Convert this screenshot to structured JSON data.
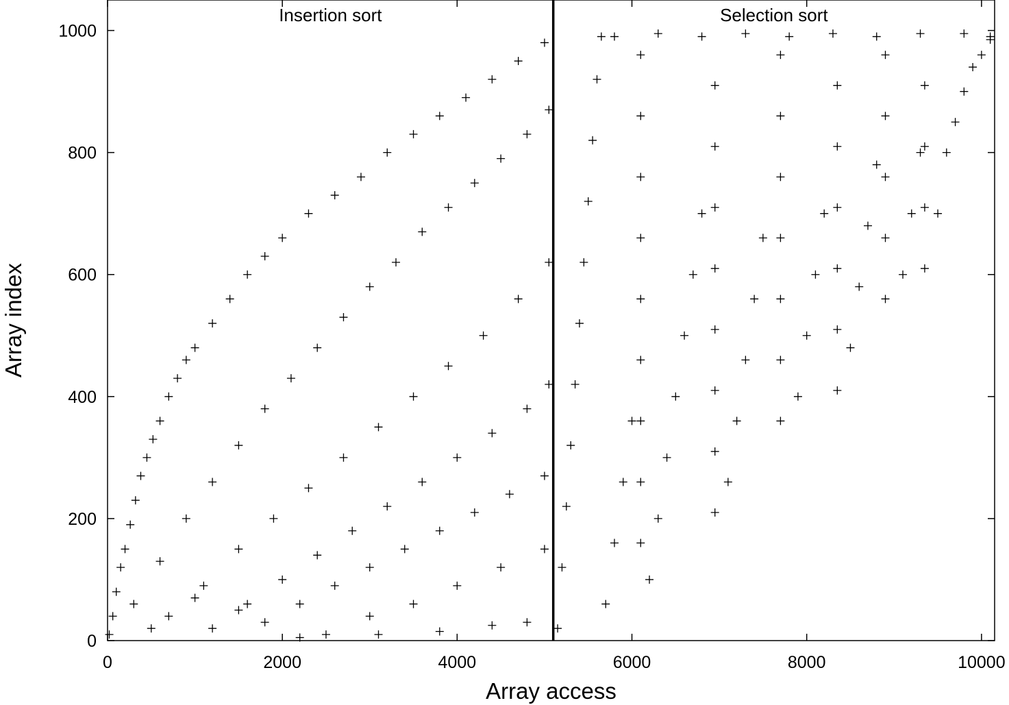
{
  "chart_data": {
    "type": "scatter",
    "title": "",
    "xlabel": "Array access",
    "ylabel": "Array index",
    "xlim": [
      0,
      10150
    ],
    "ylim": [
      0,
      1050
    ],
    "xticks": [
      0,
      2000,
      4000,
      6000,
      8000,
      10000
    ],
    "yticks": [
      0,
      200,
      400,
      600,
      800,
      1000
    ],
    "xtick_labels": [
      "0",
      "2000",
      "4000",
      "6000",
      "8000",
      "10000"
    ],
    "ytick_labels": [
      "0",
      "200",
      "400",
      "600",
      "800",
      "1000"
    ],
    "marker": "+",
    "marker_color": "#000000",
    "grid": false,
    "divider_x": 5100,
    "panels": [
      {
        "label": "Insertion sort"
      },
      {
        "label": "Selection sort"
      }
    ],
    "series": [
      {
        "points": [
          [
            20,
            10
          ],
          [
            60,
            40
          ],
          [
            100,
            80
          ],
          [
            150,
            120
          ],
          [
            200,
            150
          ],
          [
            260,
            190
          ],
          [
            320,
            230
          ],
          [
            380,
            270
          ],
          [
            450,
            300
          ],
          [
            520,
            330
          ],
          [
            600,
            360
          ],
          [
            700,
            400
          ],
          [
            800,
            430
          ],
          [
            900,
            460
          ],
          [
            1000,
            480
          ],
          [
            1200,
            520
          ],
          [
            1400,
            560
          ],
          [
            1600,
            600
          ],
          [
            1800,
            630
          ],
          [
            2000,
            660
          ],
          [
            2300,
            700
          ],
          [
            2600,
            730
          ],
          [
            2900,
            760
          ],
          [
            3200,
            800
          ],
          [
            3500,
            830
          ],
          [
            3800,
            860
          ],
          [
            4100,
            890
          ],
          [
            4400,
            920
          ],
          [
            4700,
            950
          ],
          [
            5000,
            980
          ],
          [
            300,
            60
          ],
          [
            600,
            130
          ],
          [
            900,
            200
          ],
          [
            1200,
            260
          ],
          [
            1500,
            320
          ],
          [
            1800,
            380
          ],
          [
            2100,
            430
          ],
          [
            2400,
            480
          ],
          [
            2700,
            530
          ],
          [
            3000,
            580
          ],
          [
            3300,
            620
          ],
          [
            3600,
            670
          ],
          [
            3900,
            710
          ],
          [
            4200,
            750
          ],
          [
            4500,
            790
          ],
          [
            4800,
            830
          ],
          [
            5050,
            870
          ],
          [
            700,
            40
          ],
          [
            1100,
            90
          ],
          [
            1500,
            150
          ],
          [
            1900,
            200
          ],
          [
            2300,
            250
          ],
          [
            2700,
            300
          ],
          [
            3100,
            350
          ],
          [
            3500,
            400
          ],
          [
            3900,
            450
          ],
          [
            4300,
            500
          ],
          [
            4700,
            560
          ],
          [
            5050,
            620
          ],
          [
            1200,
            20
          ],
          [
            1600,
            60
          ],
          [
            2000,
            100
          ],
          [
            2400,
            140
          ],
          [
            2800,
            180
          ],
          [
            3200,
            220
          ],
          [
            3600,
            260
          ],
          [
            4000,
            300
          ],
          [
            4400,
            340
          ],
          [
            4800,
            380
          ],
          [
            5050,
            420
          ],
          [
            1800,
            30
          ],
          [
            2200,
            60
          ],
          [
            2600,
            90
          ],
          [
            3000,
            120
          ],
          [
            3400,
            150
          ],
          [
            3800,
            180
          ],
          [
            4200,
            210
          ],
          [
            4600,
            240
          ],
          [
            5000,
            270
          ],
          [
            2500,
            10
          ],
          [
            3000,
            40
          ],
          [
            3500,
            60
          ],
          [
            4000,
            90
          ],
          [
            4500,
            120
          ],
          [
            5000,
            150
          ],
          [
            4800,
            30
          ],
          [
            4400,
            25
          ],
          [
            3800,
            15
          ],
          [
            3100,
            10
          ],
          [
            2200,
            5
          ],
          [
            1500,
            50
          ],
          [
            1000,
            70
          ],
          [
            500,
            20
          ]
        ]
      },
      {
        "points": [
          [
            5150,
            20
          ],
          [
            5200,
            120
          ],
          [
            5250,
            220
          ],
          [
            5300,
            320
          ],
          [
            5350,
            420
          ],
          [
            5400,
            520
          ],
          [
            5450,
            620
          ],
          [
            5500,
            720
          ],
          [
            5550,
            820
          ],
          [
            5600,
            920
          ],
          [
            5650,
            990
          ],
          [
            5700,
            60
          ],
          [
            5800,
            160
          ],
          [
            5900,
            260
          ],
          [
            6000,
            360
          ],
          [
            6100,
            160
          ],
          [
            6100,
            260
          ],
          [
            6100,
            360
          ],
          [
            6100,
            460
          ],
          [
            6100,
            560
          ],
          [
            6100,
            660
          ],
          [
            6100,
            760
          ],
          [
            6100,
            860
          ],
          [
            6100,
            960
          ],
          [
            6200,
            100
          ],
          [
            6300,
            200
          ],
          [
            6400,
            300
          ],
          [
            6500,
            400
          ],
          [
            6600,
            500
          ],
          [
            6700,
            600
          ],
          [
            6800,
            700
          ],
          [
            6950,
            210
          ],
          [
            6950,
            310
          ],
          [
            6950,
            410
          ],
          [
            6950,
            510
          ],
          [
            6950,
            610
          ],
          [
            6950,
            710
          ],
          [
            6950,
            810
          ],
          [
            6950,
            910
          ],
          [
            7100,
            260
          ],
          [
            7200,
            360
          ],
          [
            7300,
            460
          ],
          [
            7400,
            560
          ],
          [
            7500,
            660
          ],
          [
            7700,
            360
          ],
          [
            7700,
            460
          ],
          [
            7700,
            560
          ],
          [
            7700,
            660
          ],
          [
            7700,
            760
          ],
          [
            7700,
            860
          ],
          [
            7700,
            960
          ],
          [
            7900,
            400
          ],
          [
            8000,
            500
          ],
          [
            8100,
            600
          ],
          [
            8200,
            700
          ],
          [
            8350,
            410
          ],
          [
            8350,
            510
          ],
          [
            8350,
            610
          ],
          [
            8350,
            710
          ],
          [
            8350,
            810
          ],
          [
            8350,
            910
          ],
          [
            8500,
            480
          ],
          [
            8600,
            580
          ],
          [
            8700,
            680
          ],
          [
            8800,
            780
          ],
          [
            8900,
            560
          ],
          [
            8900,
            660
          ],
          [
            8900,
            760
          ],
          [
            8900,
            860
          ],
          [
            8900,
            960
          ],
          [
            9100,
            600
          ],
          [
            9200,
            700
          ],
          [
            9300,
            800
          ],
          [
            9350,
            610
          ],
          [
            9350,
            710
          ],
          [
            9350,
            810
          ],
          [
            9350,
            910
          ],
          [
            9500,
            700
          ],
          [
            9600,
            800
          ],
          [
            9700,
            850
          ],
          [
            9800,
            900
          ],
          [
            9900,
            940
          ],
          [
            10000,
            960
          ],
          [
            10100,
            990
          ],
          [
            5800,
            990
          ],
          [
            6300,
            995
          ],
          [
            6800,
            990
          ],
          [
            7300,
            995
          ],
          [
            7800,
            990
          ],
          [
            8300,
            995
          ],
          [
            8800,
            990
          ],
          [
            9300,
            995
          ],
          [
            9800,
            995
          ],
          [
            10100,
            985
          ]
        ]
      }
    ]
  }
}
